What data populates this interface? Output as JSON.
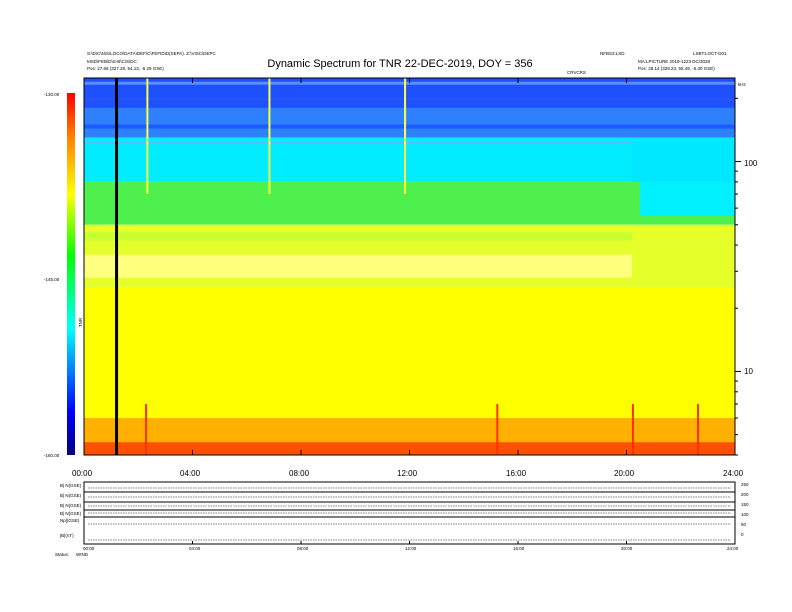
{
  "header": {
    "title": "Dynamic Spectrum for TNR 22-DEC-2019, DOY = 356",
    "left_line1": "S:\\D\\C\\N\\S\\LOCO\\DATA\\DEF\\C\\FEFID\\D(SEPA).  Z:\\VISC\\DEPC",
    "left_line2": "MSD\\FEB\\D\\S-B\\C\\S\\DC",
    "left_line3": "Pos:   27.66 (327.29, 54.13, -5.29 GSE)",
    "center_small": "CRVCRS",
    "right_top_left": "NFBS3:LSD",
    "right_top_right": "LSBT:LOCT-D01",
    "right_line2": "MA:LPICTURE 2019-1223 DC/3028",
    "right_line3": "Pos:   28.14 (328.23, 55.49, -5.30 GSE)",
    "khz_label": "kHz"
  },
  "colorbar": {
    "ticks": [
      "-130.00",
      "-145.00",
      "-160.00"
    ],
    "unit": "TNR"
  },
  "chart_data": {
    "type": "heatmap",
    "title": "Dynamic Spectrum for TNR 22-DEC-2019, DOY = 356",
    "x_ticks": [
      "00:00",
      "04:00",
      "08:00",
      "12:00",
      "16:00",
      "20:00",
      "24:00"
    ],
    "xlim_hours": [
      0,
      24
    ],
    "y_right_ticks": [
      100,
      10
    ],
    "y_scale": "log",
    "ylim_khz": [
      4,
      250
    ],
    "color_range_db": [
      -160,
      -130
    ],
    "colormap": [
      "#0000ff",
      "#00ffff",
      "#00ff00",
      "#ffff00",
      "#ff0000"
    ],
    "data_gap_time_hours": 1.2,
    "bands": [
      {
        "khz_top": 250,
        "khz_bottom": 180,
        "color": "#1e50ff"
      },
      {
        "khz_top": 180,
        "khz_bottom": 130,
        "color": "#2f80ff"
      },
      {
        "khz_top": 130,
        "khz_bottom": 80,
        "color": "#00ecff"
      },
      {
        "khz_top": 80,
        "khz_bottom": 50,
        "color": "#4ef04e"
      },
      {
        "khz_top": 50,
        "khz_bottom": 25,
        "color": "#e5ff2a"
      },
      {
        "khz_top": 25,
        "khz_bottom": 5,
        "color": "#ffff00"
      },
      {
        "khz_top": 5,
        "khz_bottom": 4,
        "color": "#ff5000"
      }
    ]
  },
  "panels": {
    "labels": [
      "B| N(GSE)",
      "B| N(GSE)",
      "B| N(GSE)",
      "B| N(GSE)",
      "Np|(GSE)",
      "|B|(nT)"
    ],
    "right_ticks": [
      "250",
      "200",
      "150",
      "100",
      "50",
      "0"
    ],
    "bottom_label": "Status:",
    "bottom_label2": "WIND",
    "x_ticks": [
      "00:00",
      "04:00",
      "08:00",
      "12:00",
      "16:00",
      "20:00",
      "24:00"
    ]
  }
}
